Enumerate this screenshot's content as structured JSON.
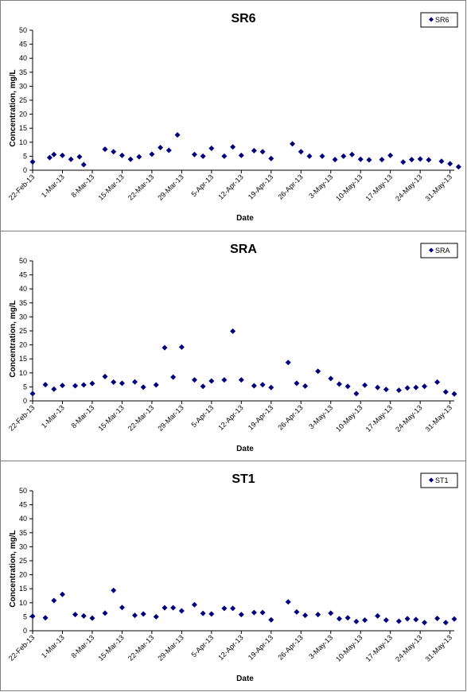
{
  "marker_color": "#00007f",
  "chart_data": [
    {
      "type": "scatter",
      "title": "SR6",
      "xlabel": "Date",
      "ylabel": "Concentration, mg/L",
      "ylim": [
        0,
        50
      ],
      "yticks": [
        "0",
        "5",
        "10",
        "15",
        "20",
        "25",
        "30",
        "35",
        "40",
        "45",
        "50"
      ],
      "xticks": [
        "22-Feb-13",
        "1-Mar-13",
        "8-Mar-13",
        "15-Mar-13",
        "22-Mar-13",
        "29-Mar-13",
        "5-Apr-13",
        "12-Apr-13",
        "19-Apr-13",
        "26-Apr-13",
        "3-May-13",
        "10-May-13",
        "17-May-13",
        "24-May-13",
        "31-May-13"
      ],
      "xlim_days": [
        0,
        99
      ],
      "legend": "SR6",
      "legend_position": "top-right",
      "grid": false,
      "series": [
        {
          "name": "SR6",
          "points": [
            [
              0,
              3.0
            ],
            [
              4,
              4.5
            ],
            [
              5,
              5.6
            ],
            [
              7,
              5.3
            ],
            [
              9,
              3.9
            ],
            [
              11,
              4.8
            ],
            [
              12,
              2.0
            ],
            [
              17,
              7.5
            ],
            [
              19,
              6.6
            ],
            [
              21,
              5.3
            ],
            [
              23,
              3.9
            ],
            [
              25,
              4.8
            ],
            [
              28,
              5.7
            ],
            [
              30,
              8.1
            ],
            [
              32,
              7.1
            ],
            [
              34,
              12.6
            ],
            [
              38,
              5.6
            ],
            [
              40,
              5.0
            ],
            [
              42,
              7.8
            ],
            [
              45,
              5.0
            ],
            [
              47,
              8.3
            ],
            [
              49,
              5.3
            ],
            [
              52,
              7.0
            ],
            [
              54,
              6.6
            ],
            [
              56,
              4.2
            ],
            [
              61,
              9.4
            ],
            [
              63,
              6.6
            ],
            [
              65,
              5.0
            ],
            [
              68,
              5.0
            ],
            [
              71,
              3.8
            ],
            [
              73,
              5.0
            ],
            [
              75,
              5.6
            ],
            [
              77,
              3.9
            ],
            [
              79,
              3.7
            ],
            [
              82,
              3.8
            ],
            [
              84,
              5.3
            ],
            [
              87,
              2.9
            ],
            [
              89,
              3.8
            ],
            [
              91,
              4.0
            ],
            [
              93,
              3.7
            ],
            [
              96,
              3.2
            ],
            [
              98,
              2.3
            ],
            [
              100,
              1.2
            ]
          ]
        }
      ]
    },
    {
      "type": "scatter",
      "title": "SRA",
      "xlabel": "Date",
      "ylabel": "Concentration, mg/L",
      "ylim": [
        0,
        50
      ],
      "yticks": [
        "0",
        "5",
        "10",
        "15",
        "20",
        "25",
        "30",
        "35",
        "40",
        "45",
        "50"
      ],
      "xticks": [
        "22-Feb-13",
        "1-Mar-13",
        "8-Mar-13",
        "15-Mar-13",
        "22-Mar-13",
        "29-Mar-13",
        "5-Apr-13",
        "12-Apr-13",
        "19-Apr-13",
        "26-Apr-13",
        "3-May-13",
        "10-May-13",
        "17-May-13",
        "24-May-13",
        "31-May-13"
      ],
      "xlim_days": [
        0,
        99
      ],
      "legend": "SRA",
      "legend_position": "top-right",
      "grid": false,
      "series": [
        {
          "name": "SRA",
          "points": [
            [
              0,
              2.6
            ],
            [
              3,
              5.8
            ],
            [
              5,
              4.2
            ],
            [
              7,
              5.5
            ],
            [
              10,
              5.4
            ],
            [
              12,
              5.7
            ],
            [
              14,
              6.2
            ],
            [
              17,
              8.7
            ],
            [
              19,
              6.7
            ],
            [
              21,
              6.3
            ],
            [
              24,
              6.8
            ],
            [
              26,
              4.9
            ],
            [
              29,
              5.7
            ],
            [
              31,
              19.0
            ],
            [
              33,
              8.5
            ],
            [
              35,
              19.2
            ],
            [
              38,
              7.5
            ],
            [
              40,
              5.2
            ],
            [
              42,
              7.1
            ],
            [
              45,
              7.5
            ],
            [
              47,
              24.9
            ],
            [
              49,
              7.5
            ],
            [
              52,
              5.4
            ],
            [
              54,
              5.8
            ],
            [
              56,
              4.8
            ],
            [
              60,
              13.7
            ],
            [
              62,
              6.3
            ],
            [
              64,
              5.3
            ],
            [
              67,
              10.6
            ],
            [
              70,
              8.0
            ],
            [
              72,
              6.0
            ],
            [
              74,
              5.2
            ],
            [
              76,
              2.6
            ],
            [
              78,
              5.6
            ],
            [
              81,
              4.8
            ],
            [
              83,
              4.1
            ],
            [
              86,
              3.8
            ],
            [
              88,
              4.6
            ],
            [
              90,
              4.8
            ],
            [
              92,
              5.2
            ],
            [
              95,
              6.7
            ],
            [
              97,
              3.2
            ],
            [
              99,
              2.5
            ]
          ]
        }
      ]
    },
    {
      "type": "scatter",
      "title": "ST1",
      "xlabel": "Date",
      "ylabel": "Concentration, mg/L",
      "ylim": [
        0,
        50
      ],
      "yticks": [
        "0",
        "5",
        "10",
        "15",
        "20",
        "25",
        "30",
        "35",
        "40",
        "45",
        "50"
      ],
      "xticks": [
        "22-Feb-13",
        "1-Mar-13",
        "8-Mar-13",
        "15-Mar-13",
        "22-Mar-13",
        "29-Mar-13",
        "5-Apr-13",
        "12-Apr-13",
        "19-Apr-13",
        "26-Apr-13",
        "3-May-13",
        "10-May-13",
        "17-May-13",
        "24-May-13",
        "31-May-13"
      ],
      "xlim_days": [
        0,
        99
      ],
      "legend": "ST1",
      "legend_position": "top-right",
      "grid": false,
      "series": [
        {
          "name": "ST1",
          "points": [
            [
              0,
              5.2
            ],
            [
              3,
              4.6
            ],
            [
              5,
              10.8
            ],
            [
              7,
              13.0
            ],
            [
              10,
              5.8
            ],
            [
              12,
              5.3
            ],
            [
              14,
              4.5
            ],
            [
              17,
              6.3
            ],
            [
              19,
              14.4
            ],
            [
              21,
              8.3
            ],
            [
              24,
              5.5
            ],
            [
              26,
              6.0
            ],
            [
              29,
              5.0
            ],
            [
              31,
              8.2
            ],
            [
              33,
              8.2
            ],
            [
              35,
              7.1
            ],
            [
              38,
              9.3
            ],
            [
              40,
              6.2
            ],
            [
              42,
              6.0
            ],
            [
              45,
              8.0
            ],
            [
              47,
              8.0
            ],
            [
              49,
              5.8
            ],
            [
              52,
              6.5
            ],
            [
              54,
              6.5
            ],
            [
              56,
              3.9
            ],
            [
              60,
              10.3
            ],
            [
              62,
              6.7
            ],
            [
              64,
              5.5
            ],
            [
              67,
              5.8
            ],
            [
              70,
              6.3
            ],
            [
              72,
              4.3
            ],
            [
              74,
              4.6
            ],
            [
              76,
              3.3
            ],
            [
              78,
              3.8
            ],
            [
              81,
              5.3
            ],
            [
              83,
              3.8
            ],
            [
              86,
              3.4
            ],
            [
              88,
              4.3
            ],
            [
              90,
              4.0
            ],
            [
              92,
              2.9
            ],
            [
              95,
              4.4
            ],
            [
              97,
              2.9
            ],
            [
              99,
              4.2
            ]
          ]
        }
      ]
    }
  ]
}
